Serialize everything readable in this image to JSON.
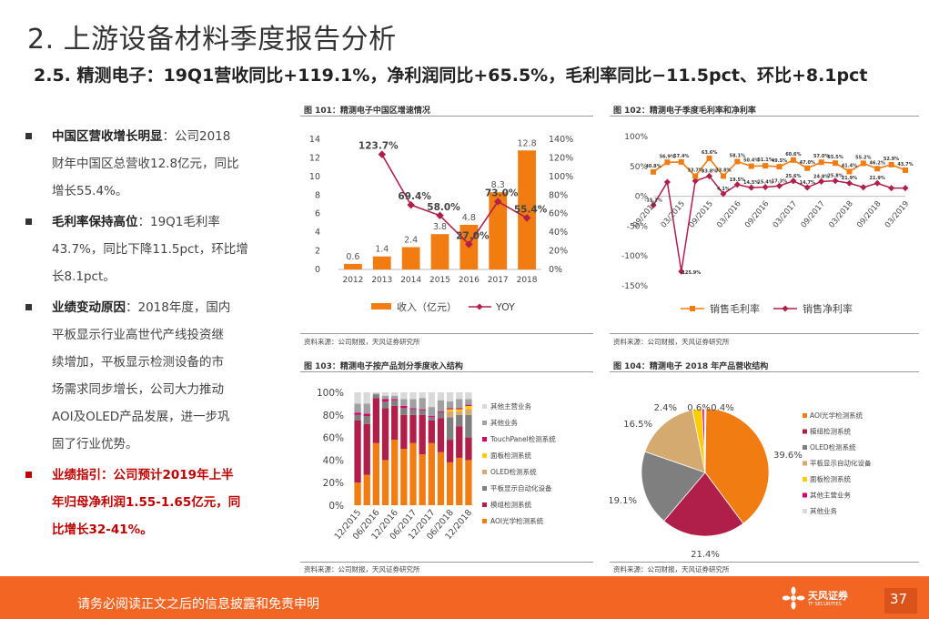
{
  "title": "2. 上游设备材料季度报告分析",
  "subtitle": "2.5. 精测电子：19Q1营收同比+119.1%，净利润同比+65.5%，毛利率同比−11.5pct、环比+8.1pct",
  "bullets": [
    {
      "label": "中国区营收增长明显",
      "text": "：公司2018财年中国区总营收12.8亿元，同比增长55.4%。",
      "lines": [
        "公司2018",
        "财年中国区总营收12.8亿元，同比",
        "增长55.4%。"
      ]
    },
    {
      "label": "毛利率保持高位",
      "text": "：19Q1毛利率43.7%，同比下降11.5pct，环比增长8.1pct。",
      "lines": [
        "19Q1毛利率",
        "43.7%，同比下降11.5pct，环比增",
        "长8.1pct。"
      ]
    },
    {
      "label": "业绩变动原因",
      "text": "：2018年度，国内平板显示行业高世代产线投资继续增加，平板显示检测设备的市场需求同步增长，公司大力推动AOI及OLED产品发展，进一步巩固了行业优势。",
      "lines": [
        "2018年度，国内",
        "平板显示行业高世代产线投资继",
        "续增加，平板显示检测设备的市",
        "场需求同步增长，公司大力推动",
        "AOI及OLED产品发展，进一步巩",
        "固了行业优势。"
      ]
    },
    {
      "label": "业绩指引：公司预计2019年上半年归母净利润1.55-1.65亿元，同比增长32-41%。",
      "lines": [
        "业绩指引：公司预计2019年上半",
        "年归母净利润1.55-1.65亿元，同",
        "比增长32-41%。"
      ]
    }
  ],
  "source_text": "资料来源：公司财报，天风证券研究所",
  "footer": {
    "disclaimer": "请务必阅读正文之后的信息披露和免责申明",
    "logo_text": "天风证券",
    "logo_sub": "TF SECURITIES",
    "page": "37"
  },
  "colors": {
    "orange": "#f07c12",
    "dark_red": "#b01e4a",
    "gray": "#7f7f7f",
    "tan": "#d4aa70",
    "yellow": "#ffcc00",
    "light_gray": "#d9d9d9",
    "magenta": "#d6006e",
    "footer": "#f26522"
  },
  "chart_data": [
    {
      "id": "fig101",
      "header": "图 101：精测电子中国区增速情况",
      "type": "bar+line",
      "categories": [
        "2012",
        "2013",
        "2014",
        "2015",
        "2016",
        "2017",
        "2018"
      ],
      "series": [
        {
          "name": "收入（亿元）",
          "type": "bar",
          "axis": "left",
          "values": [
            0.6,
            1.4,
            2.4,
            3.8,
            4.8,
            8.3,
            12.8
          ],
          "labels": [
            "0.6",
            "1.4",
            "2.4",
            "3.8",
            "4.8",
            "8.3",
            "12.8"
          ]
        },
        {
          "name": "YOY",
          "type": "line",
          "axis": "right",
          "values": [
            null,
            123.7,
            69.4,
            58.0,
            27.0,
            73.0,
            55.4
          ],
          "labels": [
            "",
            "123.7%",
            "69.4%",
            "58.0%",
            "27.0%",
            "73.0%",
            "55.4%"
          ]
        }
      ],
      "y_left": {
        "min": 0,
        "max": 14,
        "ticks": [
          "0",
          "2",
          "4",
          "6",
          "8",
          "10",
          "12",
          "14"
        ]
      },
      "y_right": {
        "min": 0,
        "max": 140,
        "ticks": [
          "0%",
          "20%",
          "40%",
          "60%",
          "80%",
          "100%",
          "120%",
          "140%"
        ]
      },
      "legend": [
        "收入（亿元）",
        "YOY"
      ]
    },
    {
      "id": "fig102",
      "header": "图 102：精测电子季度毛利率和净利率",
      "type": "line",
      "categories": [
        "09/2014",
        "12/2014",
        "03/2015",
        "06/2015",
        "09/2015",
        "12/2015",
        "03/2016",
        "06/2016",
        "09/2016",
        "12/2016",
        "03/2017",
        "06/2017",
        "09/2017",
        "12/2017",
        "03/2018",
        "06/2018",
        "09/2018",
        "12/2018",
        "03/2019"
      ],
      "x_tick_labels": [
        "09/2014",
        "03/2015",
        "09/2015",
        "03/2016",
        "09/2016",
        "03/2017",
        "09/2017",
        "03/2018",
        "09/2018",
        "03/2019"
      ],
      "series": [
        {
          "name": "销售毛利率",
          "values": [
            40.8,
            56.9,
            57.4,
            33.7,
            63.6,
            33.8,
            58.1,
            50.4,
            51.1,
            49.5,
            60.6,
            47.0,
            57.0,
            55.5,
            41.4,
            55.2,
            46.2,
            52.9,
            43.7
          ]
        },
        {
          "name": "销售净利率",
          "values": [
            -15.1,
            23.7,
            -125.9,
            25.6,
            33.8,
            4.1,
            19.5,
            14.5,
            15.4,
            17.3,
            25.6,
            14.7,
            24.8,
            25.8,
            21.9,
            15.0,
            21.9,
            13.7,
            13.7
          ]
        }
      ],
      "point_labels_gm": [
        "40.8%",
        "56.9%",
        "57.4%",
        "33.7%",
        "63.6%",
        "33.8%",
        "58.1%",
        "50.4%",
        "51.1%",
        "49.5%",
        "60.6%",
        "47.0%",
        "57.0%",
        "55.5%",
        "41.4%",
        "55.2%",
        "46.2%",
        "52.9%",
        "43.7%"
      ],
      "point_labels_nm": [
        "-15.1%",
        "",
        "-125.9%",
        "",
        "33.8%",
        "4.1%",
        "19.5%",
        "14.5%",
        "15.4%",
        "17.3%",
        "25.6%",
        "14.7%",
        "24.8%",
        "25.8%",
        "21.9%",
        "",
        "21.9%",
        "",
        ""
      ],
      "y": {
        "min": -150,
        "max": 100,
        "ticks": [
          "-150%",
          "-100%",
          "-50%",
          "0%",
          "50%",
          "100%"
        ]
      },
      "legend": [
        "销售毛利率",
        "销售净利率"
      ]
    },
    {
      "id": "fig103",
      "header": "图 103：精测电子按产品划分季度收入结构",
      "type": "stacked-bar",
      "categories": [
        "12/2015",
        "03/2016",
        "06/2016",
        "09/2016",
        "12/2016",
        "03/2017",
        "06/2017",
        "09/2017",
        "12/2017",
        "03/2018",
        "06/2018",
        "09/2018",
        "12/2018"
      ],
      "x_tick_labels": [
        "12/2015",
        "06/2016",
        "12/2016",
        "06/2017",
        "12/2017",
        "06/2018",
        "12/2018"
      ],
      "series": [
        {
          "name": "AOI光学检测系统",
          "values": [
            20,
            27,
            55,
            40,
            58,
            50,
            55,
            45,
            55,
            47,
            38,
            42,
            40
          ]
        },
        {
          "name": "模组检测系统",
          "values": [
            55,
            45,
            40,
            46,
            30,
            30,
            25,
            35,
            20,
            30,
            20,
            28,
            20
          ]
        },
        {
          "name": "平板显示自动化设备",
          "values": [
            5,
            7,
            3,
            6,
            5,
            6,
            5,
            4,
            3,
            5,
            20,
            10,
            20
          ]
        },
        {
          "name": "OLED检测系统",
          "values": [
            0,
            0,
            0,
            0,
            0,
            0,
            0,
            0,
            0,
            0,
            5,
            3,
            5
          ]
        },
        {
          "name": "面板检测系统",
          "values": [
            0,
            0,
            0,
            0,
            0,
            0,
            0,
            0,
            0,
            0,
            2,
            2,
            3
          ]
        },
        {
          "name": "TouchPanel检测系统",
          "values": [
            2,
            2,
            0,
            2,
            1,
            2,
            1,
            1,
            1,
            1,
            1,
            1,
            1
          ]
        },
        {
          "name": "其他业务",
          "values": [
            8,
            9,
            1,
            3,
            3,
            6,
            8,
            10,
            8,
            10,
            6,
            8,
            5
          ]
        },
        {
          "name": "其他主营业务",
          "values": [
            10,
            10,
            1,
            3,
            3,
            6,
            6,
            5,
            13,
            7,
            8,
            6,
            6
          ]
        }
      ],
      "y": {
        "min": 0,
        "max": 100,
        "ticks": [
          "0%",
          "20%",
          "40%",
          "60%",
          "80%",
          "100%"
        ]
      },
      "legend": [
        "其他主营业务",
        "其他业务",
        "TouchPanel检测系统",
        "面板检测系统",
        "OLED检测系统",
        "平板显示自动化设备",
        "模组检测系统",
        "AOI光学检测系统"
      ]
    },
    {
      "id": "fig104",
      "header": "图 104：精测电子 2018 年产品营收结构",
      "type": "pie",
      "slices": [
        {
          "name": "AOI光学检测系统",
          "value": 39.6,
          "label": "39.6%"
        },
        {
          "name": "模组检测系统",
          "value": 21.4,
          "label": "21.4%"
        },
        {
          "name": "OLED检测系统",
          "value": 19.1,
          "label": "19.1%"
        },
        {
          "name": "平板显示自动化设备",
          "value": 16.5,
          "label": "16.5%"
        },
        {
          "name": "面板检测系统",
          "value": 2.4,
          "label": "2.4%"
        },
        {
          "name": "其他主营业务",
          "value": 0.6,
          "label": "0.6%"
        },
        {
          "name": "其他业务",
          "value": 0.4,
          "label": "0.4%"
        }
      ],
      "legend": [
        "AOI光学检测系统",
        "模组检测系统",
        "OLED检测系统",
        "平板显示自动化设备",
        "面板检测系统",
        "其他主营业务",
        "其他业务"
      ]
    }
  ]
}
